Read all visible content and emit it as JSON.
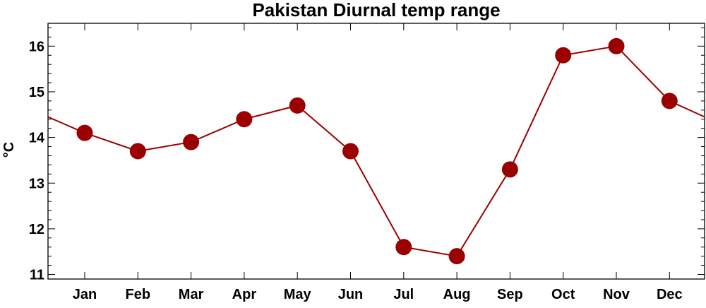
{
  "chart_data": {
    "type": "line",
    "title": "Pakistan Diurnal temp range",
    "xlabel": "",
    "ylabel": "°C",
    "categories": [
      "Jan",
      "Feb",
      "Mar",
      "Apr",
      "May",
      "Jun",
      "Jul",
      "Aug",
      "Sep",
      "Oct",
      "Nov",
      "Dec"
    ],
    "series": [
      {
        "values": [
          14.1,
          13.7,
          13.9,
          14.4,
          14.7,
          13.7,
          11.6,
          11.4,
          13.3,
          15.8,
          16.0,
          14.8
        ]
      }
    ],
    "yticks": [
      11,
      12,
      13,
      14,
      15,
      16
    ],
    "ylim": [
      10.9,
      16.5
    ],
    "line_wraps_cyclically": true,
    "grid": false,
    "legend": "none",
    "colors": {
      "series": "#9b0000",
      "axes": "#000000"
    }
  }
}
